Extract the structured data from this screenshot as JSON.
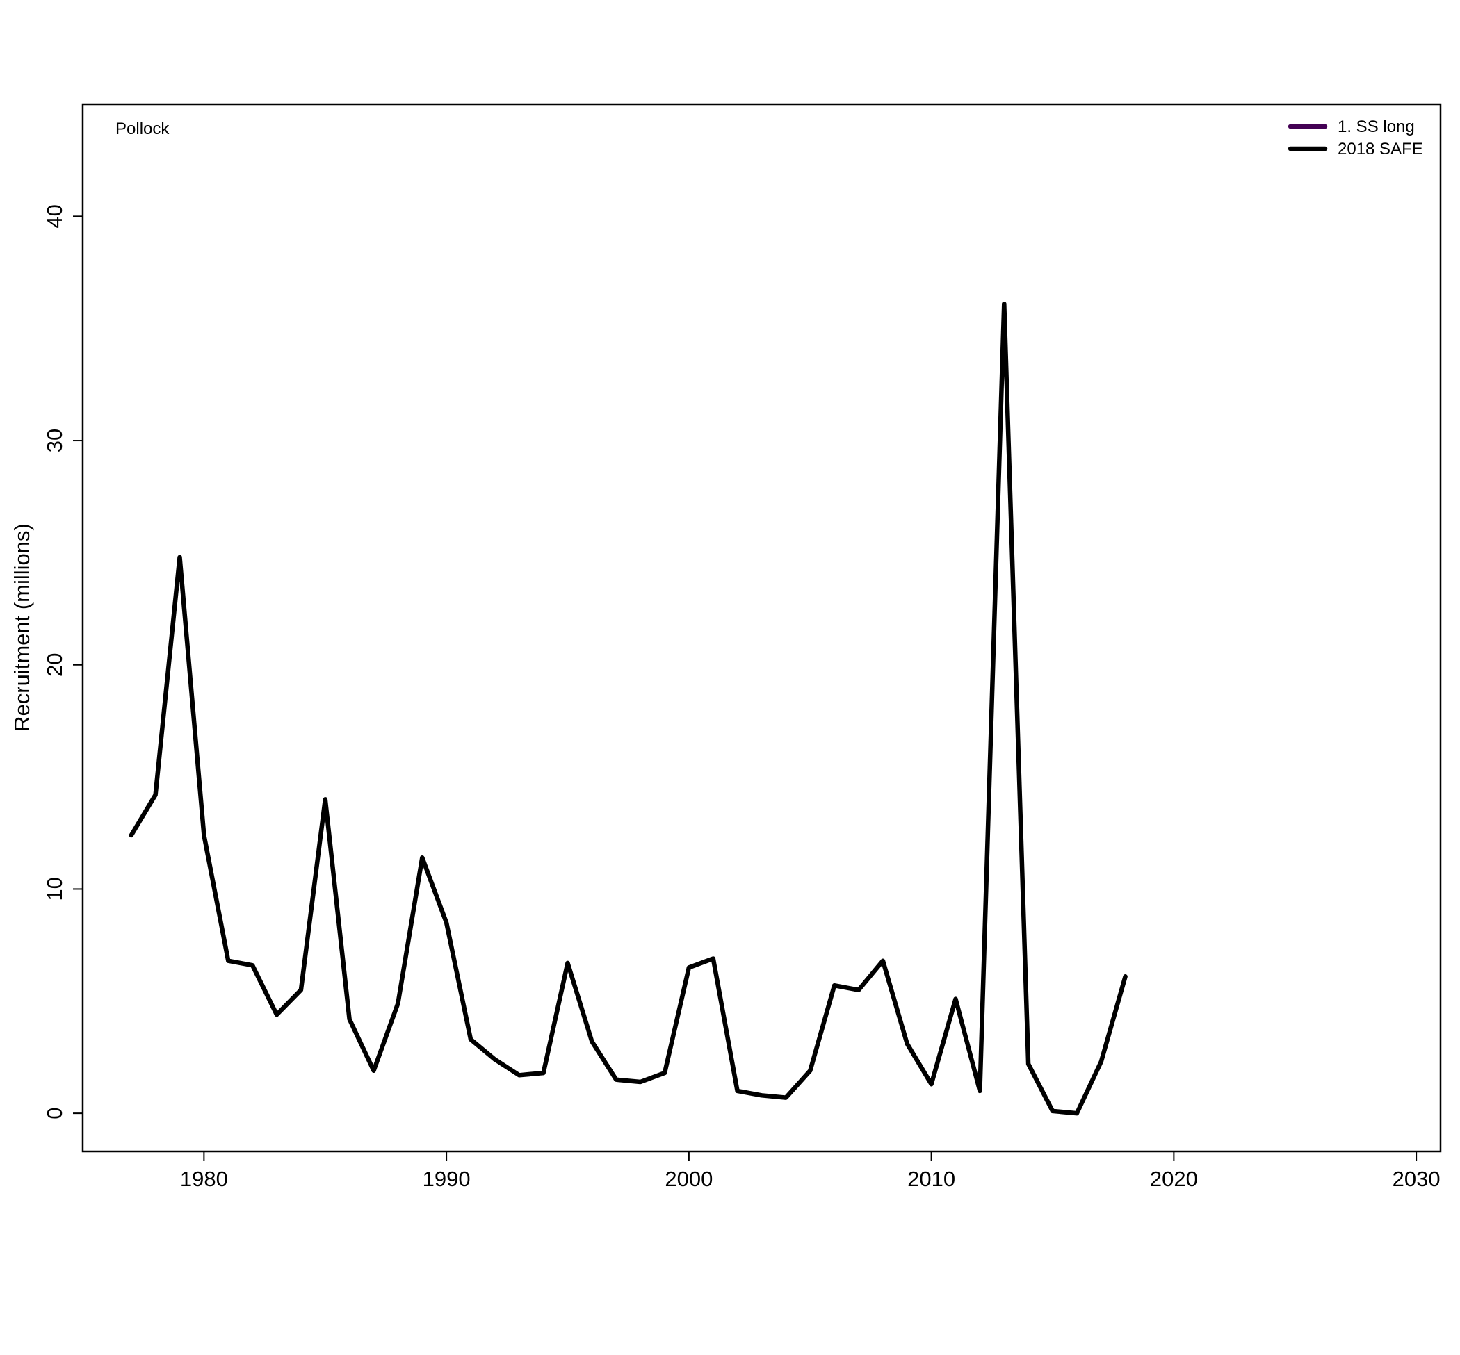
{
  "chart_data": {
    "type": "line",
    "panel_label": "Pollock",
    "xlabel": "",
    "ylabel": "Recruitment (millions)",
    "xlim": [
      1975,
      2031
    ],
    "ylim": [
      -1.7,
      45
    ],
    "x_ticks": [
      "1980",
      "1990",
      "2000",
      "2010",
      "2020",
      "2030"
    ],
    "y_ticks": [
      "0",
      "10",
      "20",
      "30",
      "40"
    ],
    "grid": false,
    "legend": {
      "placement": "top-right",
      "entries": [
        {
          "name": "1. SS long",
          "color": "#440154"
        },
        {
          "name": "2018 SAFE",
          "color": "#000000"
        }
      ]
    },
    "series": [
      {
        "name": "2018 SAFE",
        "color": "#000000",
        "x": [
          1977,
          1978,
          1979,
          1980,
          1981,
          1982,
          1983,
          1984,
          1985,
          1986,
          1987,
          1988,
          1989,
          1990,
          1991,
          1992,
          1993,
          1994,
          1995,
          1996,
          1997,
          1998,
          1999,
          2000,
          2001,
          2002,
          2003,
          2004,
          2005,
          2006,
          2007,
          2008,
          2009,
          2010,
          2011,
          2012,
          2013,
          2014,
          2015,
          2016,
          2017,
          2018
        ],
        "values": [
          12.4,
          14.2,
          24.8,
          12.4,
          6.8,
          6.6,
          4.4,
          5.5,
          14.0,
          4.2,
          1.9,
          4.9,
          11.4,
          8.5,
          3.3,
          2.4,
          1.7,
          1.8,
          6.7,
          3.2,
          1.5,
          1.4,
          1.8,
          6.5,
          6.9,
          1.0,
          0.8,
          0.7,
          1.9,
          5.7,
          5.5,
          6.8,
          3.1,
          1.3,
          5.1,
          1.0,
          36.1,
          2.2,
          0.1,
          0.0,
          2.3,
          6.1
        ]
      }
    ]
  }
}
